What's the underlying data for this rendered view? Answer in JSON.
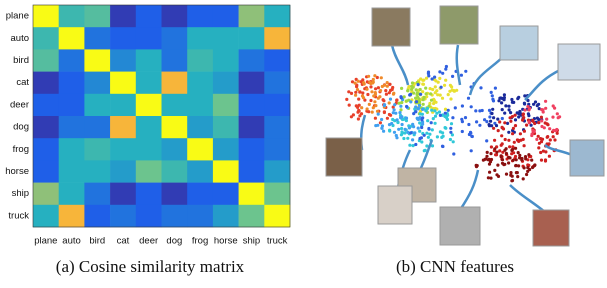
{
  "chart_data": {
    "type": "heatmap",
    "categories": [
      "plane",
      "auto",
      "bird",
      "cat",
      "deer",
      "dog",
      "frog",
      "horse",
      "ship",
      "truck"
    ],
    "values": [
      [
        1,
        0.55,
        0.6,
        0.1,
        0.3,
        0.1,
        0.3,
        0.3,
        0.7,
        0.5
      ],
      [
        0.55,
        1,
        0.35,
        0.3,
        0.3,
        0.35,
        0.5,
        0.5,
        0.5,
        0.85
      ],
      [
        0.6,
        0.35,
        1,
        0.4,
        0.5,
        0.35,
        0.55,
        0.5,
        0.35,
        0.3
      ],
      [
        0.1,
        0.3,
        0.4,
        1,
        0.5,
        0.85,
        0.5,
        0.45,
        0.1,
        0.35
      ],
      [
        0.3,
        0.3,
        0.5,
        0.5,
        1,
        0.5,
        0.5,
        0.65,
        0.3,
        0.3
      ],
      [
        0.1,
        0.35,
        0.35,
        0.85,
        0.5,
        1,
        0.45,
        0.55,
        0.1,
        0.35
      ],
      [
        0.3,
        0.5,
        0.55,
        0.5,
        0.5,
        0.45,
        1,
        0.45,
        0.3,
        0.35
      ],
      [
        0.3,
        0.5,
        0.5,
        0.45,
        0.65,
        0.55,
        0.45,
        1,
        0.3,
        0.45
      ],
      [
        0.7,
        0.5,
        0.35,
        0.1,
        0.3,
        0.1,
        0.3,
        0.3,
        1,
        0.65
      ],
      [
        0.5,
        0.85,
        0.3,
        0.35,
        0.3,
        0.35,
        0.35,
        0.45,
        0.65,
        1
      ]
    ],
    "clim": [
      0,
      1
    ],
    "colormap": "parula"
  },
  "captions": [
    "(a) Cosine similarity matrix",
    "(b) CNN features"
  ]
}
